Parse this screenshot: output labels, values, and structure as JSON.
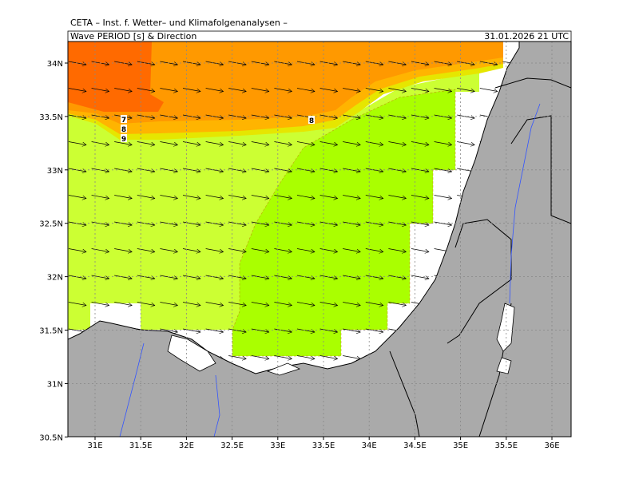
{
  "header": {
    "title": "CETA – Inst. f. Wetter– und Klimafolgenanalysen –",
    "subtitle": "Wave PERIOD [s] & Direction",
    "timestamp": "31.01.2026 21 UTC"
  },
  "axes": {
    "x_labels": [
      "31E",
      "31.5E",
      "32E",
      "32.5E",
      "33E",
      "33.5E",
      "34E",
      "34.5E",
      "35E",
      "35.5E",
      "36E"
    ],
    "y_labels": [
      "34N",
      "33.5N",
      "33N",
      "32.5N",
      "32N",
      "31.5N",
      "31N",
      "30.5N"
    ]
  },
  "contour_labels": [
    "7",
    "8",
    "9",
    "8"
  ]
}
